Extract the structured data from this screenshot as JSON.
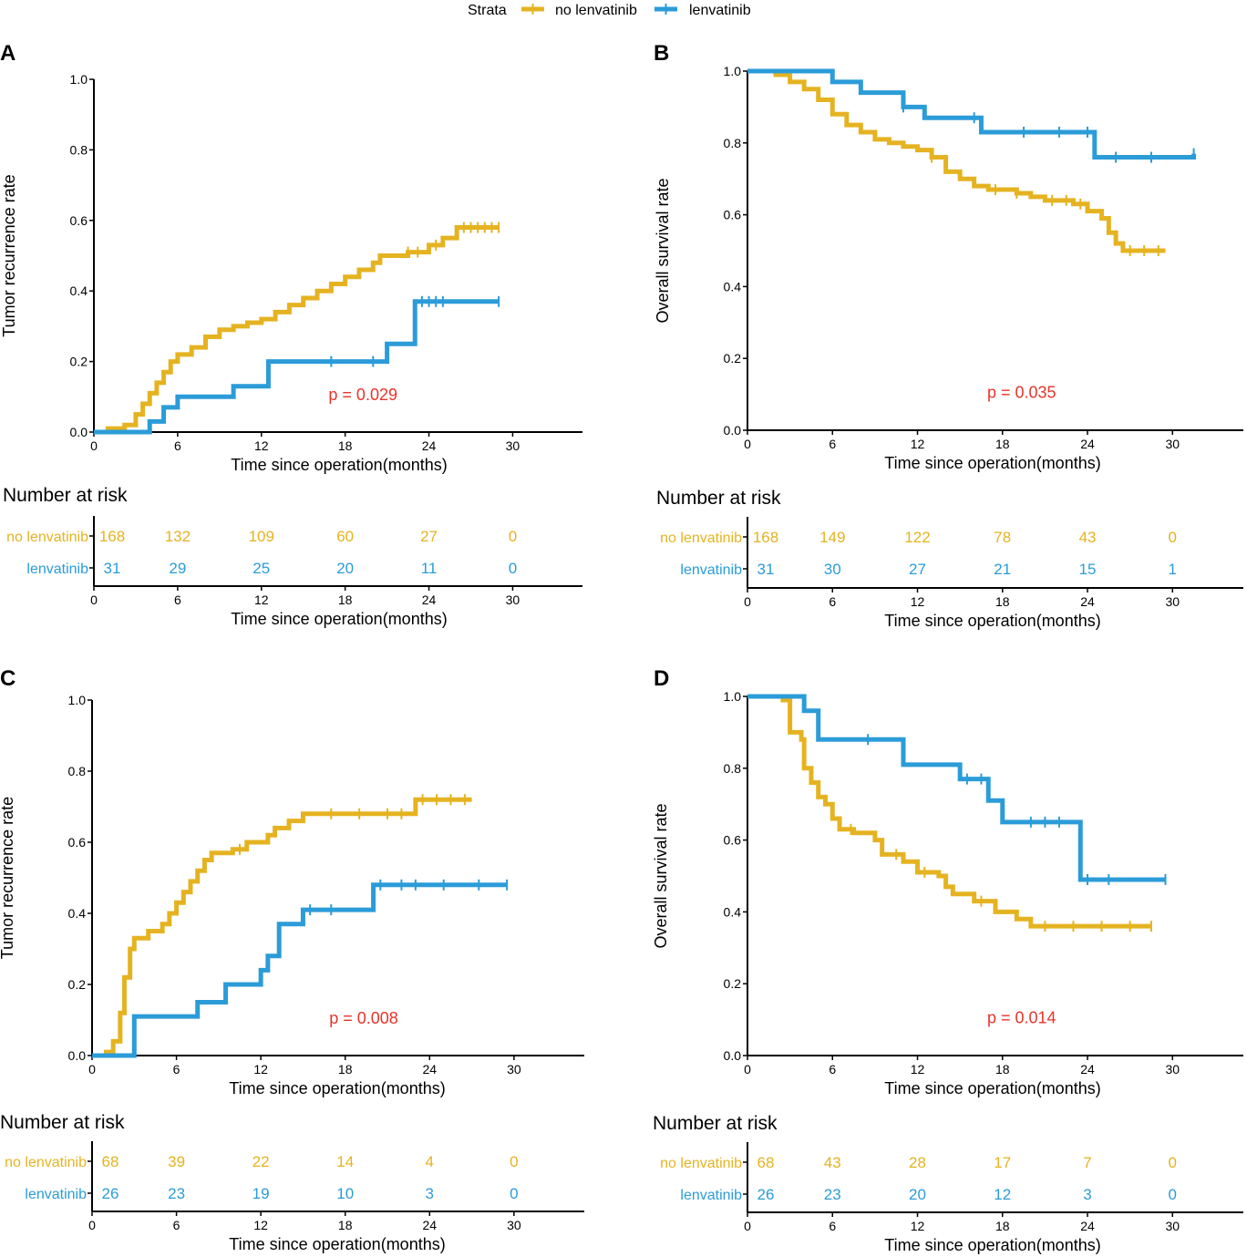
{
  "legend": {
    "title": "Strata",
    "entries": [
      {
        "label": "no lenvatinib",
        "color": "#E5B321"
      },
      {
        "label": "lenvatinib",
        "color": "#2B9CD8"
      }
    ]
  },
  "chart_data": [
    {
      "id": "A",
      "panel_label": "A",
      "type": "line",
      "subtype": "kaplan-meier-cumulative-incidence",
      "xlabel": "Time since operation(months)",
      "ylabel": "Tumor recurrence rate",
      "xlim": [
        0,
        35
      ],
      "ylim": [
        0,
        1
      ],
      "xticks": [
        0,
        6,
        12,
        18,
        24,
        30
      ],
      "yticks": [
        "0.0",
        "0.2",
        "0.4",
        "0.6",
        "0.8",
        "1.0"
      ],
      "p_value": "p = 0.029",
      "series": [
        {
          "name": "no lenvatinib",
          "color": "#E5B321",
          "steps": [
            [
              0,
              0
            ],
            [
              1,
              0.01
            ],
            [
              2.2,
              0.02
            ],
            [
              3,
              0.05
            ],
            [
              3.5,
              0.08
            ],
            [
              4,
              0.11
            ],
            [
              4.5,
              0.14
            ],
            [
              5,
              0.17
            ],
            [
              5.5,
              0.2
            ],
            [
              6,
              0.22
            ],
            [
              7,
              0.24
            ],
            [
              8,
              0.27
            ],
            [
              9,
              0.29
            ],
            [
              10,
              0.3
            ],
            [
              11,
              0.31
            ],
            [
              12,
              0.32
            ],
            [
              13,
              0.34
            ],
            [
              14,
              0.36
            ],
            [
              15,
              0.38
            ],
            [
              16,
              0.4
            ],
            [
              17,
              0.42
            ],
            [
              18,
              0.44
            ],
            [
              19,
              0.46
            ],
            [
              20,
              0.48
            ],
            [
              20.5,
              0.5
            ],
            [
              22.5,
              0.51
            ],
            [
              24,
              0.53
            ],
            [
              25,
              0.55
            ],
            [
              26,
              0.58
            ],
            [
              29,
              0.58
            ]
          ],
          "censor": [
            22.5,
            23.2,
            24.5,
            26.5,
            27,
            27.5,
            28,
            28.5,
            29
          ]
        },
        {
          "name": "lenvatinib",
          "color": "#2B9CD8",
          "steps": [
            [
              0,
              0
            ],
            [
              4,
              0.03
            ],
            [
              5,
              0.07
            ],
            [
              6,
              0.1
            ],
            [
              10,
              0.13
            ],
            [
              12.5,
              0.2
            ],
            [
              21,
              0.25
            ],
            [
              23,
              0.37
            ],
            [
              29,
              0.37
            ]
          ],
          "censor": [
            17,
            20,
            23.5,
            24,
            24.5,
            25,
            29
          ]
        }
      ],
      "risk_table": {
        "title": "Number at risk",
        "rows": [
          {
            "label": "no lenvatinib",
            "color": "#E5B321",
            "values": [
              168,
              132,
              109,
              60,
              27,
              0
            ]
          },
          {
            "label": "lenvatinib",
            "color": "#2B9CD8",
            "values": [
              31,
              29,
              25,
              20,
              11,
              0
            ]
          }
        ],
        "xlabel": "Time since operation(months)"
      }
    },
    {
      "id": "B",
      "panel_label": "B",
      "type": "line",
      "subtype": "kaplan-meier-survival",
      "xlabel": "Time since operation(months)",
      "ylabel": "Overall survival rate",
      "xlim": [
        0,
        35
      ],
      "ylim": [
        0,
        1
      ],
      "xticks": [
        0,
        6,
        12,
        18,
        24,
        30
      ],
      "yticks": [
        "0.0",
        "0.2",
        "0.4",
        "0.6",
        "0.8",
        "1.0"
      ],
      "p_value": "p = 0.035",
      "series": [
        {
          "name": "no lenvatinib",
          "color": "#E5B321",
          "steps": [
            [
              0,
              1
            ],
            [
              2,
              0.99
            ],
            [
              3,
              0.97
            ],
            [
              4,
              0.95
            ],
            [
              5,
              0.92
            ],
            [
              6,
              0.88
            ],
            [
              7,
              0.85
            ],
            [
              8,
              0.83
            ],
            [
              9,
              0.81
            ],
            [
              10,
              0.8
            ],
            [
              11,
              0.79
            ],
            [
              12,
              0.78
            ],
            [
              13,
              0.76
            ],
            [
              14,
              0.72
            ],
            [
              15,
              0.7
            ],
            [
              16,
              0.68
            ],
            [
              17,
              0.67
            ],
            [
              19,
              0.66
            ],
            [
              20,
              0.65
            ],
            [
              21,
              0.64
            ],
            [
              23,
              0.63
            ],
            [
              24,
              0.61
            ],
            [
              25,
              0.59
            ],
            [
              25.5,
              0.55
            ],
            [
              26,
              0.52
            ],
            [
              26.5,
              0.5
            ],
            [
              29.5,
              0.5
            ]
          ],
          "censor": [
            13,
            17.5,
            19,
            21.5,
            22.5,
            23.5,
            27,
            28,
            29
          ]
        },
        {
          "name": "lenvatinib",
          "color": "#2B9CD8",
          "steps": [
            [
              0,
              1
            ],
            [
              6,
              0.97
            ],
            [
              8,
              0.94
            ],
            [
              11,
              0.9
            ],
            [
              12.5,
              0.87
            ],
            [
              16.5,
              0.83
            ],
            [
              24.5,
              0.76
            ],
            [
              31.5,
              0.77
            ]
          ],
          "censor": [
            11,
            16,
            19.5,
            22,
            24,
            26,
            28.5,
            31.5
          ]
        }
      ],
      "risk_table": {
        "title": "Number at risk",
        "rows": [
          {
            "label": "no lenvatinib",
            "color": "#E5B321",
            "values": [
              168,
              149,
              122,
              78,
              43,
              0
            ]
          },
          {
            "label": "lenvatinib",
            "color": "#2B9CD8",
            "values": [
              31,
              30,
              27,
              21,
              15,
              1
            ]
          }
        ],
        "xlabel": "Time since operation(months)"
      }
    },
    {
      "id": "C",
      "panel_label": "C",
      "type": "line",
      "subtype": "kaplan-meier-cumulative-incidence",
      "xlabel": "Time since operation(months)",
      "ylabel": "Tumor recurrence rate",
      "xlim": [
        0,
        35
      ],
      "ylim": [
        0,
        1
      ],
      "xticks": [
        0,
        6,
        12,
        18,
        24,
        30
      ],
      "yticks": [
        "0.0",
        "0.2",
        "0.4",
        "0.6",
        "0.8",
        "1.0"
      ],
      "p_value": "p = 0.008",
      "series": [
        {
          "name": "no lenvatinib",
          "color": "#E5B321",
          "steps": [
            [
              0,
              0
            ],
            [
              1,
              0.01
            ],
            [
              1.5,
              0.04
            ],
            [
              2,
              0.12
            ],
            [
              2.3,
              0.22
            ],
            [
              2.7,
              0.3
            ],
            [
              3,
              0.33
            ],
            [
              4,
              0.35
            ],
            [
              5,
              0.37
            ],
            [
              5.5,
              0.4
            ],
            [
              6,
              0.43
            ],
            [
              6.5,
              0.46
            ],
            [
              7,
              0.49
            ],
            [
              7.5,
              0.52
            ],
            [
              8,
              0.55
            ],
            [
              8.5,
              0.57
            ],
            [
              10,
              0.58
            ],
            [
              11,
              0.6
            ],
            [
              12.5,
              0.62
            ],
            [
              13,
              0.64
            ],
            [
              14,
              0.66
            ],
            [
              15,
              0.68
            ],
            [
              23,
              0.72
            ],
            [
              27,
              0.72
            ]
          ],
          "censor": [
            10.5,
            17,
            19,
            21,
            22,
            23.5,
            24.5,
            25.5,
            26.5
          ]
        },
        {
          "name": "lenvatinib",
          "color": "#2B9CD8",
          "steps": [
            [
              0,
              0
            ],
            [
              3,
              0.11
            ],
            [
              7.5,
              0.15
            ],
            [
              9.5,
              0.2
            ],
            [
              12,
              0.24
            ],
            [
              12.5,
              0.28
            ],
            [
              13.3,
              0.37
            ],
            [
              15,
              0.41
            ],
            [
              20,
              0.48
            ],
            [
              29.5,
              0.48
            ]
          ],
          "censor": [
            15.5,
            17,
            20.5,
            22,
            23,
            25,
            27.5,
            29.5
          ]
        }
      ],
      "risk_table": {
        "title": "Number at risk",
        "rows": [
          {
            "label": "no lenvatinib",
            "color": "#E5B321",
            "values": [
              68,
              39,
              22,
              14,
              4,
              0
            ]
          },
          {
            "label": "lenvatinib",
            "color": "#2B9CD8",
            "values": [
              26,
              23,
              19,
              10,
              3,
              0
            ]
          }
        ],
        "xlabel": "Time since operation(months)"
      }
    },
    {
      "id": "D",
      "panel_label": "D",
      "type": "line",
      "subtype": "kaplan-meier-survival",
      "xlabel": "Time since operation(months)",
      "ylabel": "Overall survival rate",
      "xlim": [
        0,
        35
      ],
      "ylim": [
        0,
        1
      ],
      "xticks": [
        0,
        6,
        12,
        18,
        24,
        30
      ],
      "yticks": [
        "0.0",
        "0.2",
        "0.4",
        "0.6",
        "0.8",
        "1.0"
      ],
      "p_value": "p = 0.014",
      "series": [
        {
          "name": "no lenvatinib",
          "color": "#E5B321",
          "steps": [
            [
              0,
              1
            ],
            [
              2.5,
              0.99
            ],
            [
              3,
              0.9
            ],
            [
              3.8,
              0.88
            ],
            [
              4,
              0.8
            ],
            [
              4.5,
              0.76
            ],
            [
              5,
              0.72
            ],
            [
              5.5,
              0.7
            ],
            [
              6,
              0.66
            ],
            [
              6.5,
              0.63
            ],
            [
              7.5,
              0.62
            ],
            [
              9,
              0.6
            ],
            [
              9.5,
              0.56
            ],
            [
              11,
              0.54
            ],
            [
              12,
              0.51
            ],
            [
              13.5,
              0.5
            ],
            [
              14,
              0.47
            ],
            [
              14.5,
              0.45
            ],
            [
              16,
              0.43
            ],
            [
              17.5,
              0.4
            ],
            [
              19,
              0.38
            ],
            [
              20,
              0.36
            ],
            [
              28.5,
              0.36
            ]
          ],
          "censor": [
            7.3,
            10.5,
            12.5,
            16.5,
            21,
            23,
            25,
            27,
            28.5
          ]
        },
        {
          "name": "lenvatinib",
          "color": "#2B9CD8",
          "steps": [
            [
              0,
              1
            ],
            [
              4,
              0.96
            ],
            [
              5,
              0.88
            ],
            [
              11,
              0.81
            ],
            [
              15,
              0.77
            ],
            [
              17,
              0.71
            ],
            [
              18,
              0.65
            ],
            [
              23.5,
              0.49
            ],
            [
              29.5,
              0.49
            ]
          ],
          "censor": [
            8.5,
            15.5,
            16.5,
            20,
            21,
            22,
            24,
            25.5,
            29.5
          ]
        }
      ],
      "risk_table": {
        "title": "Number at risk",
        "rows": [
          {
            "label": "no lenvatinib",
            "color": "#E5B321",
            "values": [
              68,
              43,
              28,
              17,
              7,
              0
            ]
          },
          {
            "label": "lenvatinib",
            "color": "#2B9CD8",
            "values": [
              26,
              23,
              20,
              12,
              3,
              0
            ]
          }
        ],
        "xlabel": "Time since operation(months)"
      }
    }
  ]
}
